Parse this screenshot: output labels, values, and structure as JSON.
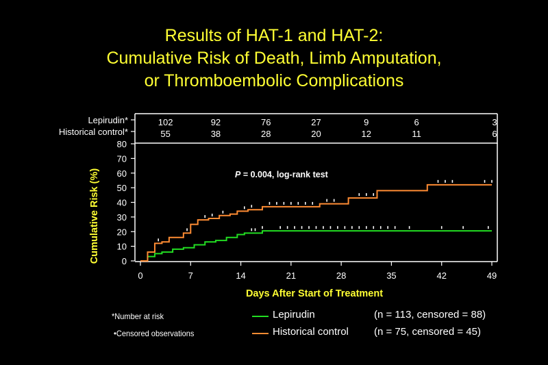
{
  "title": {
    "line1": "Results of HAT-1 and HAT-2:",
    "line2": "Cumulative Risk of Death, Limb Amputation,",
    "line3": "or Thromboembolic Complications"
  },
  "colors": {
    "background": "#000000",
    "title": "#ffff33",
    "axis_label": "#ffff33",
    "lepirudin": "#22dd22",
    "historical": "#ff8c33"
  },
  "chart_data": {
    "type": "line",
    "step": true,
    "xlabel": "Days After Start of Treatment",
    "ylabel": "Cumulative Risk (%)",
    "xlim": [
      0,
      49
    ],
    "ylim": [
      0,
      80
    ],
    "xticks": [
      0,
      7,
      14,
      21,
      28,
      35,
      42,
      49
    ],
    "yticks": [
      0,
      10,
      20,
      30,
      40,
      50,
      60,
      70,
      80
    ],
    "annotation": {
      "p": "P",
      "text": " = 0.004, log-rank test"
    },
    "grid": false,
    "series": [
      {
        "name": "Lepirudin",
        "color": "#22dd22",
        "x": [
          0,
          1,
          2,
          3,
          4.5,
          6,
          7.5,
          9,
          10.5,
          12,
          13.5,
          14.5,
          17,
          49
        ],
        "y": [
          0,
          3,
          5,
          6,
          8,
          9,
          11,
          13,
          14,
          16,
          18,
          19,
          20.5,
          20.5
        ],
        "censored": [
          15.5,
          16,
          17,
          19.5,
          20.5,
          21.5,
          22.5,
          23.5,
          24.5,
          25.5,
          26.5,
          27.5,
          28.5,
          29.5,
          30.5,
          31.5,
          32.5,
          33.5,
          34.5,
          35.5,
          37.5,
          42,
          45,
          48.5
        ]
      },
      {
        "name": "Historical control",
        "color": "#ff8c33",
        "x": [
          0,
          1,
          2,
          3,
          4,
          6,
          7,
          8,
          9.5,
          11,
          12.5,
          13.5,
          15,
          17,
          19,
          25,
          29,
          33,
          36.5,
          40,
          49
        ],
        "y": [
          0,
          6,
          12,
          13,
          16,
          19,
          25,
          28,
          29,
          31,
          32,
          34,
          35,
          37,
          37,
          39,
          43,
          48,
          48,
          52,
          52
        ],
        "censored": [
          2.5,
          6.5,
          9,
          10,
          11.5,
          14.5,
          15.5,
          18,
          19,
          20,
          21,
          22,
          23,
          24,
          26,
          27,
          30.5,
          31.5,
          32.5,
          41.5,
          42.5,
          43.5,
          48,
          49
        ]
      }
    ],
    "at_risk": {
      "columns_x": [
        7,
        14,
        21,
        28,
        35,
        42,
        49
      ],
      "rows": [
        {
          "label": "Lepirudin*",
          "values": [
            "102",
            "92",
            "76",
            "27",
            "9",
            "6",
            "3"
          ]
        },
        {
          "label": "Historical control*",
          "values": [
            "55",
            "38",
            "28",
            "20",
            "12",
            "11",
            "6"
          ]
        }
      ]
    }
  },
  "legend": {
    "lepirudin": {
      "label": "Lepirudin",
      "stats": "(n = 113, censored = 88)"
    },
    "historical": {
      "label": "Historical control",
      "stats": "(n = 75, censored = 45)"
    }
  },
  "notes": {
    "number_at_risk": "*Number at risk",
    "censored": "•Censored observations"
  }
}
